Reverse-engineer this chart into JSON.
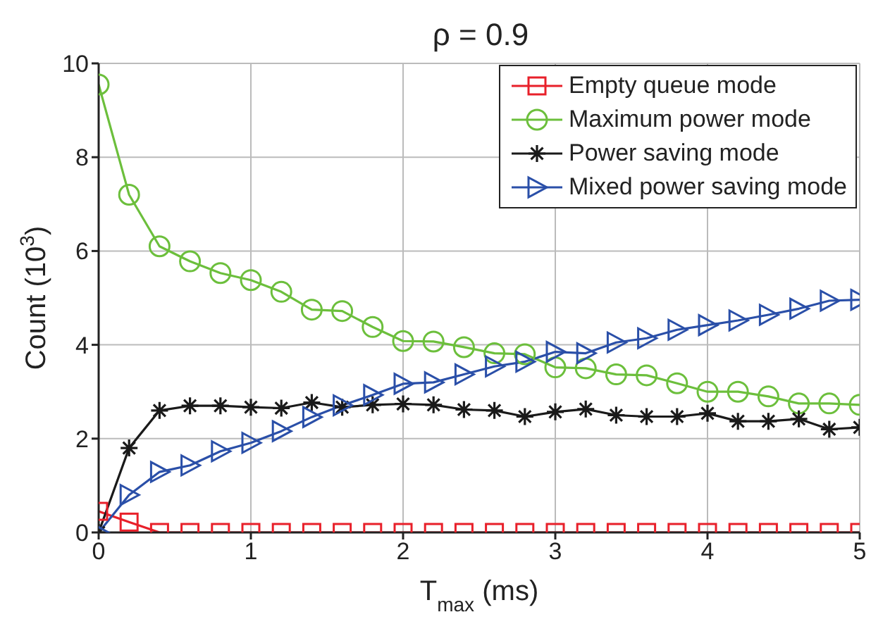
{
  "chart_data": {
    "type": "line",
    "title": "ρ = 0.9",
    "xlabel": "T$_{max}$ (ms)",
    "ylabel": "Count (10$^{3}$)",
    "x": [
      0,
      0.2,
      0.4,
      0.6,
      0.8,
      1,
      1.2,
      1.4,
      1.6,
      1.8,
      2,
      2.2,
      2.4,
      2.6,
      2.8,
      3,
      3.2,
      3.4,
      3.6,
      3.8,
      4,
      4.2,
      4.4,
      4.6,
      4.8,
      5
    ],
    "series": [
      {
        "name": "Empty queue mode",
        "color": "#e8202a",
        "marker": "square",
        "values": [
          0.45,
          0.22,
          0,
          0,
          0,
          0,
          0,
          0,
          0,
          0,
          0,
          0,
          0,
          0,
          0,
          0,
          0,
          0,
          0,
          0,
          0,
          0,
          0,
          0,
          0,
          0
        ]
      },
      {
        "name": "Maximum power mode",
        "color": "#6cbf3c",
        "marker": "circle",
        "values": [
          9.55,
          7.2,
          6.1,
          5.78,
          5.53,
          5.38,
          5.13,
          4.75,
          4.72,
          4.38,
          4.08,
          4.07,
          3.95,
          3.82,
          3.8,
          3.52,
          3.5,
          3.37,
          3.35,
          3.18,
          3.0,
          3.0,
          2.9,
          2.75,
          2.75,
          2.72
        ]
      },
      {
        "name": "Power saving mode",
        "color": "#1a1a1a",
        "marker": "cross",
        "values": [
          0,
          1.8,
          2.6,
          2.7,
          2.7,
          2.67,
          2.65,
          2.77,
          2.67,
          2.72,
          2.74,
          2.72,
          2.62,
          2.6,
          2.47,
          2.57,
          2.63,
          2.5,
          2.47,
          2.47,
          2.54,
          2.37,
          2.37,
          2.42,
          2.2,
          2.24
        ]
      },
      {
        "name": "Mixed power saving mode",
        "color": "#2a4fa8",
        "marker": "triangle",
        "values": [
          0,
          0.8,
          1.29,
          1.43,
          1.73,
          1.91,
          2.16,
          2.46,
          2.71,
          2.93,
          3.17,
          3.2,
          3.37,
          3.54,
          3.64,
          3.85,
          3.82,
          4.05,
          4.14,
          4.32,
          4.42,
          4.52,
          4.64,
          4.77,
          4.94,
          4.96
        ]
      }
    ],
    "xlim": [
      0,
      5
    ],
    "xticks": [
      0,
      1,
      2,
      3,
      4,
      5
    ],
    "ylim": [
      0,
      10
    ],
    "yticks": [
      0,
      2,
      4,
      6,
      8,
      10
    ],
    "grid": true,
    "legend": "top right",
    "line_style": "solid"
  }
}
